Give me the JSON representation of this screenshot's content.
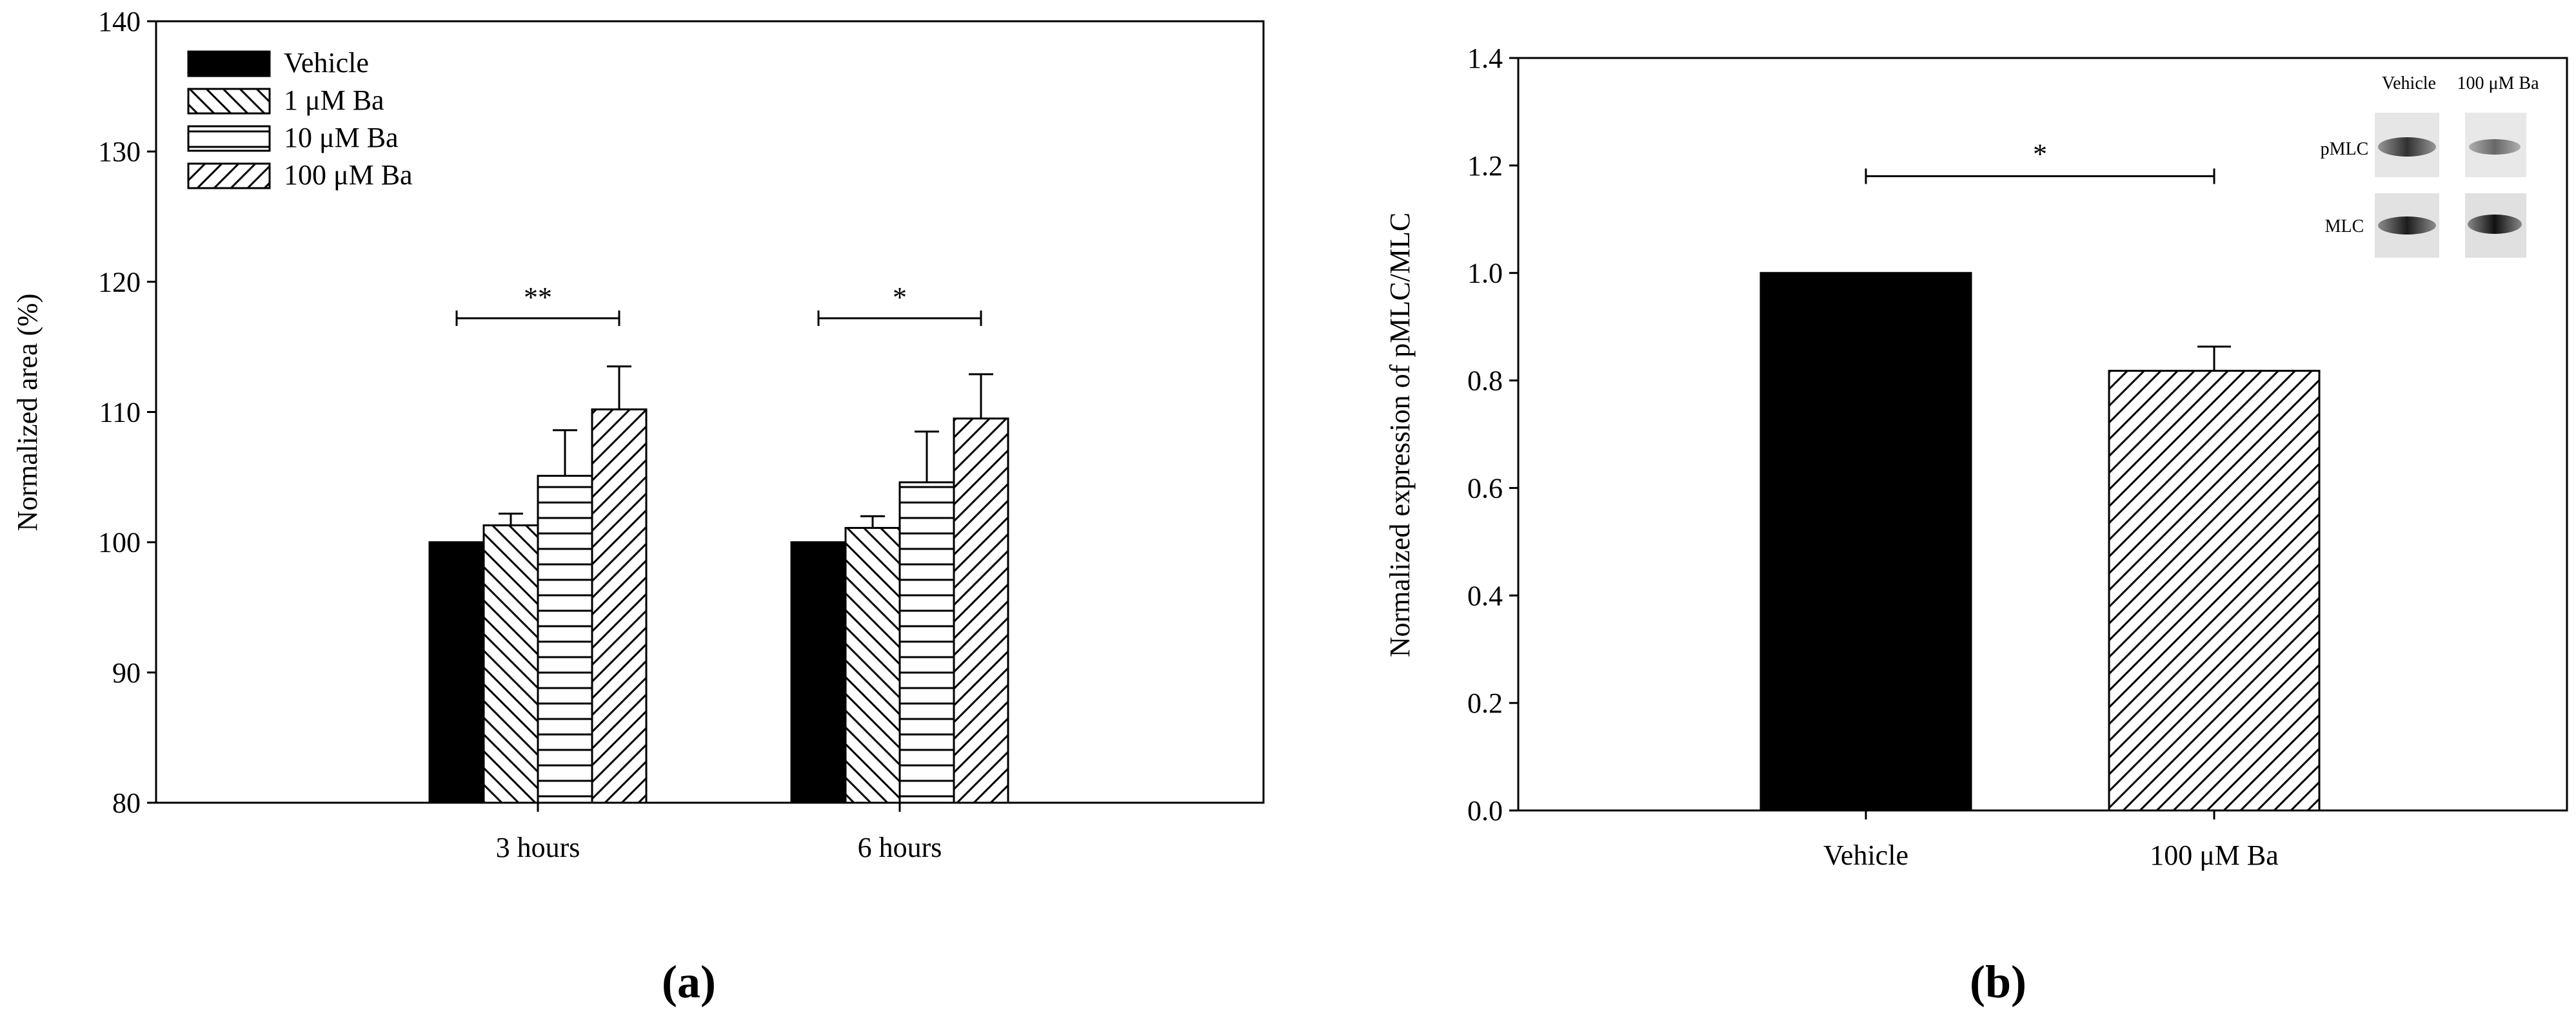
{
  "chart_data": [
    {
      "type": "bar",
      "panel_label": "(a)",
      "categories": [
        "3 hours",
        "6 hours"
      ],
      "series": [
        {
          "name": "Vehicle",
          "pattern": "solid",
          "values": [
            100.0,
            100.0
          ],
          "errors": [
            0,
            0
          ]
        },
        {
          "name": "1 μM Ba",
          "pattern": "backslash",
          "values": [
            101.3,
            101.1
          ],
          "errors": [
            0.9,
            0.9
          ]
        },
        {
          "name": "10 μM Ba",
          "pattern": "horizontal",
          "values": [
            105.1,
            104.6
          ],
          "errors": [
            3.5,
            3.9
          ]
        },
        {
          "name": "100 μM Ba",
          "pattern": "slash",
          "values": [
            110.2,
            109.5
          ],
          "errors": [
            3.3,
            3.4
          ]
        }
      ],
      "xlabel": "",
      "ylabel": "Normalized area (%)",
      "ylim": [
        80,
        140
      ],
      "yticks": [
        "80",
        "90",
        "100",
        "110",
        "120",
        "130",
        "140"
      ],
      "legend_position": "top-left",
      "significance": [
        {
          "category": "3 hours",
          "label": "**",
          "y": 117.2
        },
        {
          "category": "6 hours",
          "label": "*",
          "y": 117.2
        }
      ]
    },
    {
      "type": "bar",
      "panel_label": "(b)",
      "categories": [
        "Vehicle",
        "100 μM Ba"
      ],
      "series": [
        {
          "name": "",
          "patterns": [
            "solid",
            "slash"
          ],
          "values": [
            1.0,
            0.818
          ],
          "errors": [
            0,
            0.045
          ]
        }
      ],
      "xlabel": "",
      "ylabel": "Normalized expression of pMLC/MLC",
      "ylim": [
        0.0,
        1.4
      ],
      "yticks": [
        "0.0",
        "0.2",
        "0.4",
        "0.6",
        "0.8",
        "1.0",
        "1.2",
        "1.4"
      ],
      "significance": [
        {
          "between": [
            "Vehicle",
            "100 μM Ba"
          ],
          "label": "*",
          "y": 1.18
        }
      ],
      "inset_blot": {
        "column_labels": [
          "Vehicle",
          "100 μM Ba"
        ],
        "row_labels": [
          "pMLC",
          "MLC"
        ]
      }
    }
  ]
}
